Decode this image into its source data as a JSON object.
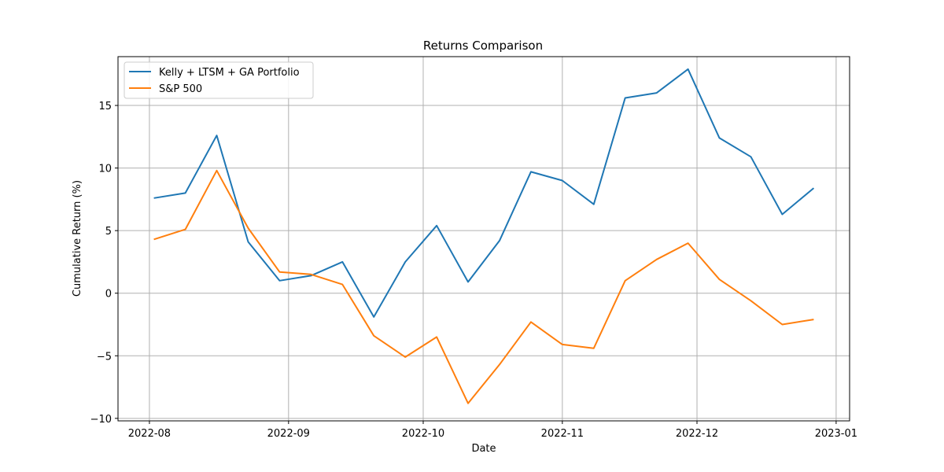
{
  "chart_data": {
    "type": "line",
    "title": "Returns Comparison",
    "xlabel": "Date",
    "ylabel": "Cumulative Return (%)",
    "x": [
      "2022-08-02",
      "2022-08-09",
      "2022-08-16",
      "2022-08-23",
      "2022-08-30",
      "2022-09-06",
      "2022-09-13",
      "2022-09-20",
      "2022-09-27",
      "2022-10-04",
      "2022-10-11",
      "2022-10-18",
      "2022-10-25",
      "2022-11-01",
      "2022-11-08",
      "2022-11-15",
      "2022-11-22",
      "2022-11-29",
      "2022-12-06",
      "2022-12-13",
      "2022-12-20",
      "2022-12-27"
    ],
    "series": [
      {
        "name": "Kelly + LTSM + GA Portfolio",
        "color": "#1f77b4",
        "values": [
          7.6,
          8.0,
          12.6,
          4.1,
          1.0,
          1.4,
          2.5,
          -1.9,
          2.5,
          5.4,
          0.9,
          4.2,
          9.7,
          9.0,
          7.1,
          15.6,
          16.0,
          17.9,
          12.4,
          10.9,
          6.3,
          8.4
        ]
      },
      {
        "name": "S&P 500",
        "color": "#ff7f0e",
        "values": [
          4.3,
          5.1,
          9.8,
          5.2,
          1.7,
          1.5,
          0.7,
          -3.4,
          -5.1,
          -3.5,
          -8.8,
          -5.7,
          -2.3,
          -4.1,
          -4.4,
          1.0,
          2.7,
          4.0,
          1.1,
          -0.6,
          -2.5,
          -2.1
        ]
      }
    ],
    "xlim": [
      "2022-07-25",
      "2023-01-04"
    ],
    "ylim": [
      -10.2,
      18.9
    ],
    "xticks": [
      {
        "value": "2022-08-01",
        "label": "2022-08"
      },
      {
        "value": "2022-09-01",
        "label": "2022-09"
      },
      {
        "value": "2022-10-01",
        "label": "2022-10"
      },
      {
        "value": "2022-11-01",
        "label": "2022-11"
      },
      {
        "value": "2022-12-01",
        "label": "2022-12"
      },
      {
        "value": "2023-01-01",
        "label": "2023-01"
      }
    ],
    "yticks": [
      {
        "value": -10,
        "label": "−10"
      },
      {
        "value": -5,
        "label": "−5"
      },
      {
        "value": 0,
        "label": "0"
      },
      {
        "value": 5,
        "label": "5"
      },
      {
        "value": 10,
        "label": "10"
      },
      {
        "value": 15,
        "label": "15"
      }
    ],
    "grid": true,
    "legend_position": "top-left"
  }
}
